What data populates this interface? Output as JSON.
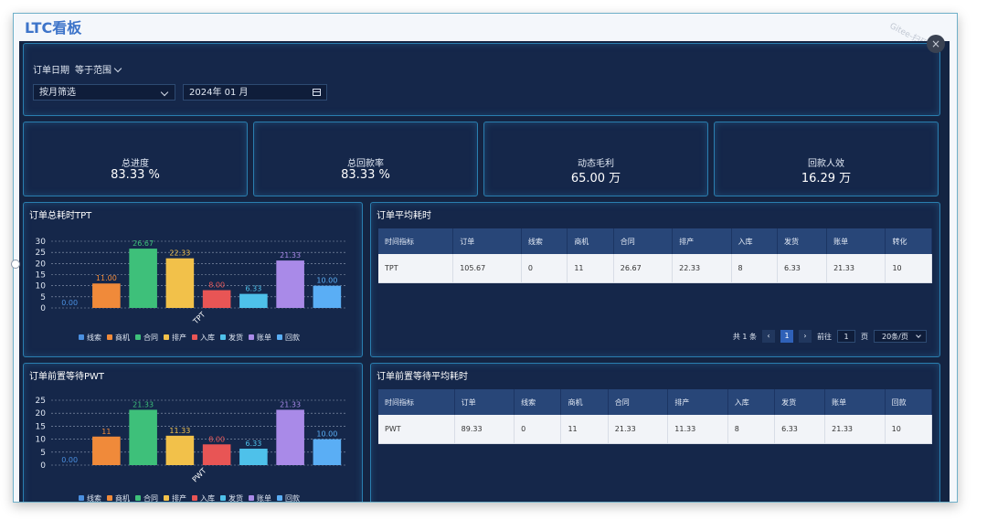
{
  "app": {
    "title": "LTC看板",
    "watermark": "Gitee-扫码"
  },
  "filter": {
    "label": "订单日期",
    "operator": "等于范围",
    "mode_select": "按月筛选",
    "date_value": "2024年 01 月"
  },
  "kpis": [
    {
      "title": "总进度",
      "value": "83.33 %"
    },
    {
      "title": "总回款率",
      "value": "83.33 %"
    },
    {
      "title": "动态毛利",
      "value": "65.00 万"
    },
    {
      "title": "回款人效",
      "value": "16.29 万"
    }
  ],
  "tpt_panel": {
    "title": "订单总耗时TPT"
  },
  "pwt_panel": {
    "title": "订单前置等待PWT"
  },
  "tpt_table": {
    "title": "订单平均耗时",
    "headers": [
      "时间指标",
      "订单",
      "线索",
      "商机",
      "合同",
      "排产",
      "入库",
      "发货",
      "账单",
      "转化"
    ],
    "rows": [
      [
        "TPT",
        "105.67",
        "0",
        "11",
        "26.67",
        "22.33",
        "8",
        "6.33",
        "21.33",
        "10"
      ]
    ],
    "pager": {
      "total": "共 1 条",
      "current": "1",
      "goto_label": "前往",
      "goto_value": "1",
      "page_suffix": "页",
      "page_size": "20条/页"
    }
  },
  "pwt_table": {
    "title": "订单前置等待平均耗时",
    "headers": [
      "时间指标",
      "订单",
      "线索",
      "商机",
      "合同",
      "排产",
      "入库",
      "发货",
      "账单",
      "回款"
    ],
    "rows": [
      [
        "PWT",
        "89.33",
        "0",
        "11",
        "21.33",
        "11.33",
        "8",
        "6.33",
        "21.33",
        "10"
      ]
    ]
  },
  "chart_data": [
    {
      "type": "bar",
      "title": "订单总耗时TPT",
      "categories": [
        "TPT"
      ],
      "series": [
        {
          "name": "线索",
          "values": [
            0
          ],
          "label": "0.00",
          "color": "#4a8fe0"
        },
        {
          "name": "商机",
          "values": [
            11
          ],
          "label": "11.00",
          "color": "#f08a3a"
        },
        {
          "name": "合同",
          "values": [
            26.67
          ],
          "label": "26.67",
          "color": "#3ec07a"
        },
        {
          "name": "排产",
          "values": [
            22.33
          ],
          "label": "22.33",
          "color": "#f2c14a"
        },
        {
          "name": "入库",
          "values": [
            8
          ],
          "label": "8.00",
          "color": "#e85555"
        },
        {
          "name": "发货",
          "values": [
            6.33
          ],
          "label": "6.33",
          "color": "#4ec1ea"
        },
        {
          "name": "账单",
          "values": [
            21.33
          ],
          "label": "21.33",
          "color": "#a98ae8"
        },
        {
          "name": "回款",
          "values": [
            10
          ],
          "label": "10.00",
          "color": "#5aaef5"
        }
      ],
      "ylim": [
        0,
        30
      ],
      "yticks": [
        "0",
        "5",
        "10",
        "15",
        "20",
        "25",
        "30"
      ],
      "grid": true,
      "legend": "bottom"
    },
    {
      "type": "bar",
      "title": "订单前置等待PWT",
      "categories": [
        "PWT"
      ],
      "series": [
        {
          "name": "线索",
          "values": [
            0
          ],
          "label": "0.00",
          "color": "#4a8fe0"
        },
        {
          "name": "商机",
          "values": [
            11
          ],
          "label": "11",
          "color": "#f08a3a"
        },
        {
          "name": "合同",
          "values": [
            21.33
          ],
          "label": "21.33",
          "color": "#3ec07a"
        },
        {
          "name": "排产",
          "values": [
            11.33
          ],
          "label": "11.33",
          "color": "#f2c14a"
        },
        {
          "name": "入库",
          "values": [
            8
          ],
          "label": "8.00",
          "color": "#e85555"
        },
        {
          "name": "发货",
          "values": [
            6.33
          ],
          "label": "6.33",
          "color": "#4ec1ea"
        },
        {
          "name": "账单",
          "values": [
            21.33
          ],
          "label": "21.33",
          "color": "#a98ae8"
        },
        {
          "name": "回款",
          "values": [
            10
          ],
          "label": "10.00",
          "color": "#5aaef5"
        }
      ],
      "ylim": [
        0,
        25
      ],
      "yticks": [
        "0",
        "5",
        "10",
        "15",
        "20",
        "25"
      ],
      "grid": true,
      "legend": "bottom"
    }
  ]
}
